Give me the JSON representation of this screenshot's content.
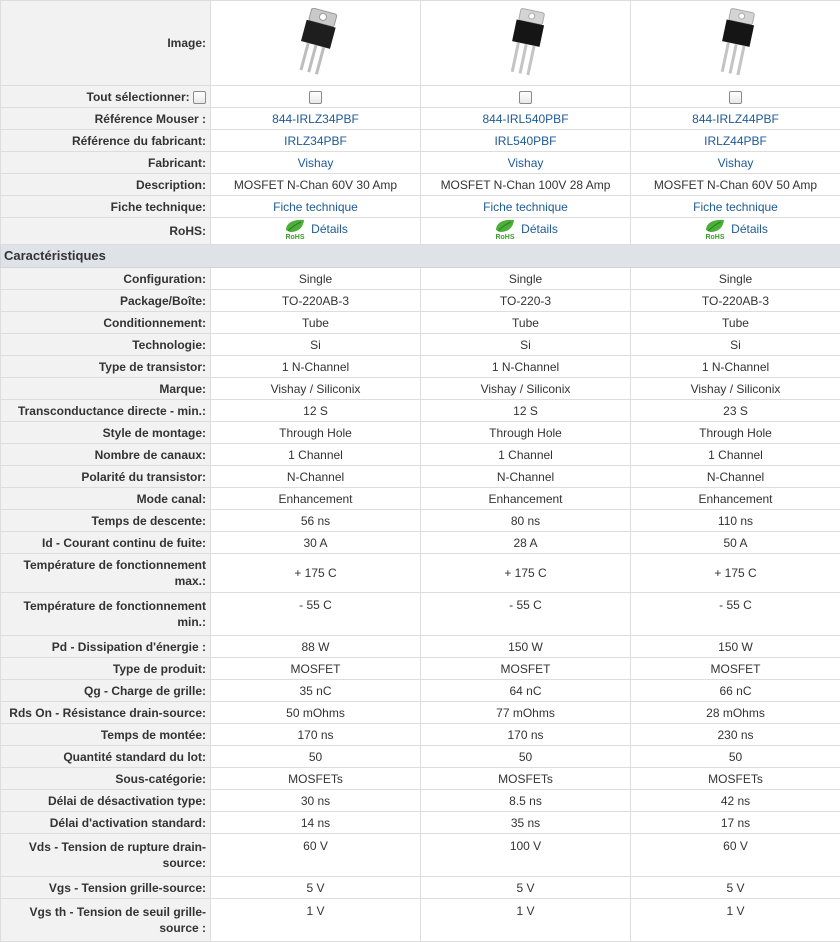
{
  "header": {
    "image_label": "Image:",
    "select_all_label": "Tout sélectionner:",
    "mouser_ref_label": "Référence Mouser :",
    "mfr_ref_label": "Référence du fabricant:",
    "manufacturer_label": "Fabricant:",
    "description_label": "Description:",
    "datasheet_label": "Fiche technique:",
    "rohs_label": "RoHS:"
  },
  "section_title": "Caractéristiques",
  "icons": {
    "rohs": "rohs-leaf-icon",
    "checkbox": "checkbox-icon"
  },
  "colors": {
    "link": "#1e5a96",
    "rohs_green": "#3a9a2a",
    "label_bg": "#f2f2f2",
    "section_bg": "#dfe3e8"
  },
  "products": [
    {
      "mouser_ref": "844-IRLZ34PBF",
      "mfr_ref": "IRLZ34PBF",
      "manufacturer": "Vishay",
      "description": "MOSFET N-Chan 60V 30 Amp",
      "datasheet": "Fiche technique",
      "rohs": "Détails"
    },
    {
      "mouser_ref": "844-IRL540PBF",
      "mfr_ref": "IRL540PBF",
      "manufacturer": "Vishay",
      "description": "MOSFET N-Chan 100V 28 Amp",
      "datasheet": "Fiche technique",
      "rohs": "Détails"
    },
    {
      "mouser_ref": "844-IRLZ44PBF",
      "mfr_ref": "IRLZ44PBF",
      "manufacturer": "Vishay",
      "description": "MOSFET N-Chan 60V 50 Amp",
      "datasheet": "Fiche technique",
      "rohs": "Détails"
    }
  ],
  "specs": [
    {
      "label": "Configuration:",
      "values": [
        "Single",
        "Single",
        "Single"
      ]
    },
    {
      "label": "Package/Boîte:",
      "values": [
        "TO-220AB-3",
        "TO-220-3",
        "TO-220AB-3"
      ]
    },
    {
      "label": "Conditionnement:",
      "values": [
        "Tube",
        "Tube",
        "Tube"
      ]
    },
    {
      "label": "Technologie:",
      "values": [
        "Si",
        "Si",
        "Si"
      ]
    },
    {
      "label": "Type de transistor:",
      "values": [
        "1 N-Channel",
        "1 N-Channel",
        "1 N-Channel"
      ]
    },
    {
      "label": "Marque:",
      "values": [
        "Vishay / Siliconix",
        "Vishay / Siliconix",
        "Vishay / Siliconix"
      ]
    },
    {
      "label": "Transconductance directe - min.:",
      "values": [
        "12 S",
        "12 S",
        "23 S"
      ]
    },
    {
      "label": "Style de montage:",
      "values": [
        "Through Hole",
        "Through Hole",
        "Through Hole"
      ]
    },
    {
      "label": "Nombre de canaux:",
      "values": [
        "1 Channel",
        "1 Channel",
        "1 Channel"
      ]
    },
    {
      "label": "Polarité du transistor:",
      "values": [
        "N-Channel",
        "N-Channel",
        "N-Channel"
      ]
    },
    {
      "label": "Mode canal:",
      "values": [
        "Enhancement",
        "Enhancement",
        "Enhancement"
      ]
    },
    {
      "label": "Temps de descente:",
      "values": [
        "56 ns",
        "80 ns",
        "110 ns"
      ]
    },
    {
      "label": "Id - Courant continu de fuite:",
      "values": [
        "30 A",
        "28 A",
        "50 A"
      ]
    },
    {
      "label": "Température de fonctionnement max.:",
      "values": [
        "+ 175 C",
        "+ 175 C",
        "+ 175 C"
      ],
      "tall": true
    },
    {
      "label": "Température de fonctionnement min.:",
      "values": [
        "- 55 C",
        "- 55 C",
        "- 55 C"
      ],
      "tall": true,
      "top": true
    },
    {
      "label": "Pd - Dissipation d'énergie :",
      "values": [
        "88 W",
        "150 W",
        "150 W"
      ]
    },
    {
      "label": "Type de produit:",
      "values": [
        "MOSFET",
        "MOSFET",
        "MOSFET"
      ]
    },
    {
      "label": "Qg - Charge de grille:",
      "values": [
        "35 nC",
        "64 nC",
        "66 nC"
      ]
    },
    {
      "label": "Rds On - Résistance drain-source:",
      "values": [
        "50 mOhms",
        "77 mOhms",
        "28 mOhms"
      ]
    },
    {
      "label": "Temps de montée:",
      "values": [
        "170 ns",
        "170 ns",
        "230 ns"
      ]
    },
    {
      "label": "Quantité standard du lot:",
      "values": [
        "50",
        "50",
        "50"
      ]
    },
    {
      "label": "Sous-catégorie:",
      "values": [
        "MOSFETs",
        "MOSFETs",
        "MOSFETs"
      ]
    },
    {
      "label": "Délai de désactivation type:",
      "values": [
        "30 ns",
        "8.5 ns",
        "42 ns"
      ]
    },
    {
      "label": "Délai d'activation standard:",
      "values": [
        "14 ns",
        "35 ns",
        "17 ns"
      ]
    },
    {
      "label": "Vds - Tension de rupture drain-source:",
      "values": [
        "60 V",
        "100 V",
        "60 V"
      ],
      "tall": true,
      "top": true
    },
    {
      "label": "Vgs - Tension grille-source:",
      "values": [
        "5 V",
        "5 V",
        "5 V"
      ]
    },
    {
      "label": "Vgs th - Tension de seuil grille-source :",
      "values": [
        "1 V",
        "1 V",
        "1 V"
      ],
      "tall": true,
      "top": true
    }
  ]
}
